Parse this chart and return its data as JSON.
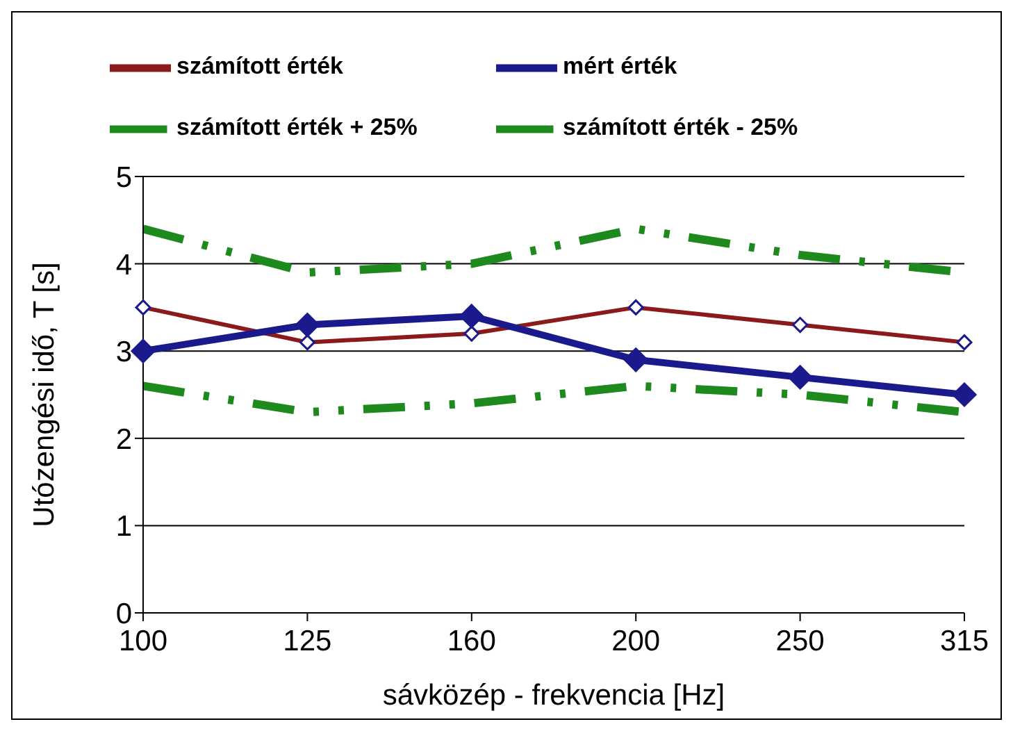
{
  "chart_data": {
    "type": "line",
    "xlabel": "sávközép - frekvencia [Hz]",
    "ylabel": "Utózengési idő, T [s]",
    "categories": [
      "100",
      "125",
      "160",
      "200",
      "250",
      "315"
    ],
    "series": [
      {
        "name": "számított érték",
        "color": "#8b1a1a",
        "values": [
          3.5,
          3.1,
          3.2,
          3.5,
          3.3,
          3.1
        ],
        "marker": "diamond",
        "line_style": "solid"
      },
      {
        "name": "mért érték",
        "color": "#1a1a8c",
        "values": [
          3.0,
          3.3,
          3.4,
          2.9,
          2.7,
          2.5
        ],
        "marker": "diamond",
        "line_style": "solid"
      },
      {
        "name": "számított érték + 25%",
        "color": "#1e8a1e",
        "values": [
          4.4,
          3.9,
          4.0,
          4.4,
          4.1,
          3.9
        ],
        "marker": "none",
        "line_style": "dashed"
      },
      {
        "name": "számított érték - 25%",
        "color": "#1e8a1e",
        "values": [
          2.6,
          2.3,
          2.4,
          2.6,
          2.5,
          2.3
        ],
        "marker": "none",
        "line_style": "dashed"
      }
    ],
    "ylim": [
      0,
      5
    ],
    "yticks": [
      0,
      1,
      2,
      3,
      4,
      5
    ],
    "grid": "y",
    "legend": "top"
  }
}
